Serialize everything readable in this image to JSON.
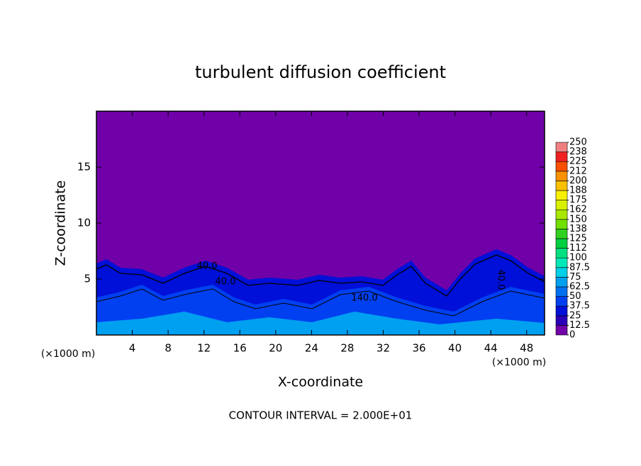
{
  "chart_data": {
    "type": "contour",
    "title": "turbulent diffusion coefficient",
    "x_label": "X-coordinate",
    "y_label": "Z-coordinate",
    "x_unit_labels": [
      "(×1000 m)",
      "(×1000 m)"
    ],
    "footnote": "CONTOUR INTERVAL = 2.000E+01",
    "contour_labels": [
      "40.0",
      "40.0",
      "140.0",
      "40.0"
    ],
    "xlim": [
      0,
      50
    ],
    "xticks": [
      4,
      8,
      12,
      16,
      20,
      24,
      28,
      32,
      36,
      40,
      44,
      48
    ],
    "ylim": [
      0,
      20
    ],
    "yticks": [
      5,
      10,
      15
    ],
    "colorbar": {
      "ticks": [
        0,
        12.5,
        25,
        37.5,
        50,
        62.5,
        75,
        87.5,
        100,
        {
          "value": 112.5,
          "label": "112"
        },
        125,
        {
          "value": 137.5,
          "label": "138"
        },
        150,
        {
          "value": 162.5,
          "label": "162"
        },
        175,
        {
          "value": 187.5,
          "label": "188"
        },
        200,
        {
          "value": 212.5,
          "label": "212"
        },
        225,
        {
          "value": 237.5,
          "label": "238"
        },
        250
      ],
      "colors": [
        "#7000a8",
        "#2800b8",
        "#0010d8",
        "#0040f0",
        "#0070f0",
        "#00a0f0",
        "#00d0e8",
        "#00e8b8",
        "#00e080",
        "#00d040",
        "#30d020",
        "#70e000",
        "#a8e800",
        "#d8f000",
        "#f8f000",
        "#f8c000",
        "#f89000",
        "#f85000",
        "#f02020",
        "#f08080"
      ]
    }
  }
}
